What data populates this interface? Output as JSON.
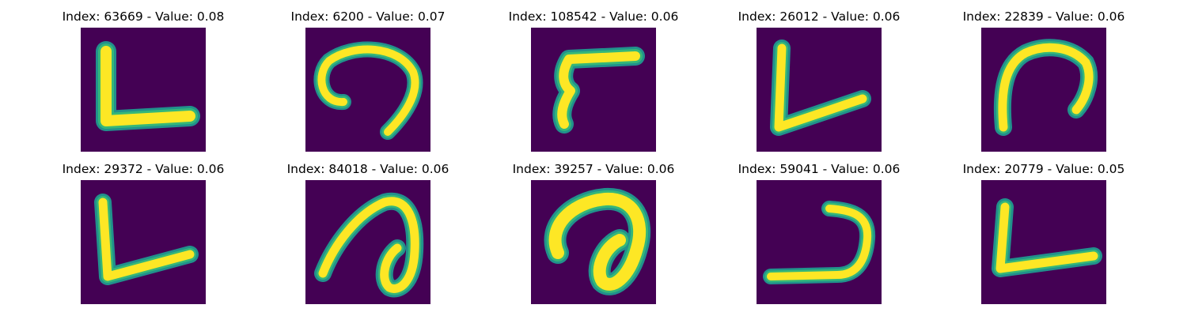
{
  "colors": {
    "background": "#440154",
    "stroke_core": "#fde725",
    "stroke_mid": "#35b779",
    "stroke_edge": "#21918c"
  },
  "samples": [
    {
      "title": "Index: 63669 - Value: 0.08",
      "glyph": "L-shape"
    },
    {
      "title": "Index: 6200 - Value: 0.07",
      "glyph": "hook-curl"
    },
    {
      "title": "Index: 108542 - Value: 0.06",
      "glyph": "flag-hook"
    },
    {
      "title": "Index: 26012 - Value: 0.06",
      "glyph": "V-check"
    },
    {
      "title": "Index: 22839 - Value: 0.06",
      "glyph": "arch"
    },
    {
      "title": "Index: 29372 - Value: 0.06",
      "glyph": "L-shape"
    },
    {
      "title": "Index: 84018 - Value: 0.06",
      "glyph": "loop-curl"
    },
    {
      "title": "Index: 39257 - Value: 0.06",
      "glyph": "loop-curl"
    },
    {
      "title": "Index: 59041 - Value: 0.06",
      "glyph": "reverse-j"
    },
    {
      "title": "Index: 20779 - Value: 0.05",
      "glyph": "L-shape"
    }
  ]
}
